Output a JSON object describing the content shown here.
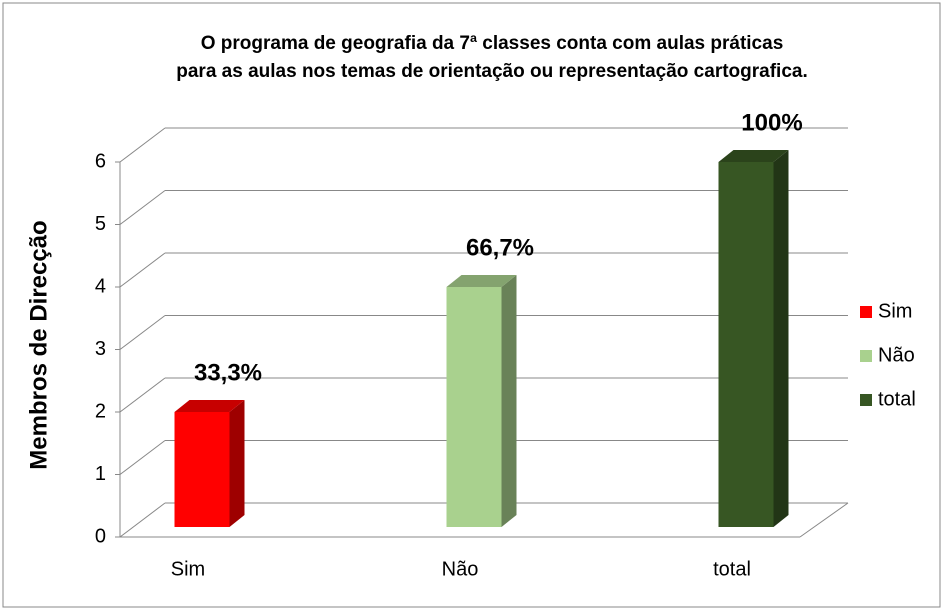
{
  "chart_data": {
    "type": "bar3d",
    "title": [
      "O programa de geografia da 7ª classes conta com aulas  práticas",
      "para as aulas nos temas de orientação ou representação cartografica."
    ],
    "ylabel": "Membros de Direcção",
    "categories": [
      "Sim",
      "Não",
      "total"
    ],
    "values": [
      2,
      4,
      6
    ],
    "value_labels": [
      "33,3%",
      "66,7%",
      "100%"
    ],
    "colors": [
      "#ff0000",
      "#a9d18e",
      "#375623"
    ],
    "ylim": [
      0,
      6
    ],
    "yticks": [
      0,
      1,
      2,
      3,
      4,
      5,
      6
    ],
    "grid": true,
    "legend": "right"
  }
}
